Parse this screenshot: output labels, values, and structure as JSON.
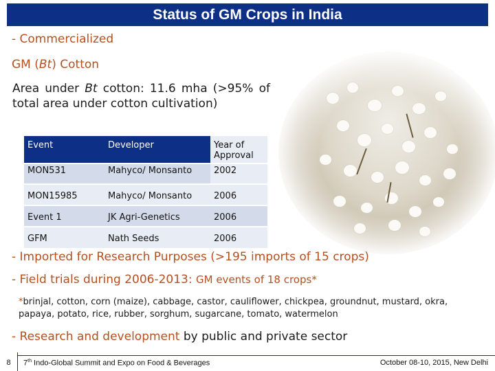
{
  "title": "Status of GM Crops in India",
  "sections": {
    "commercialized": "- Commercialized",
    "crop_heading_prefix": "GM (",
    "crop_heading_italic": "Bt",
    "crop_heading_suffix": ") Cotton",
    "area_prefix": "Area under ",
    "area_italic": "Bt",
    "area_suffix": " cotton: 11.6 mha (>95% of total area under cotton cultivation)"
  },
  "table": {
    "headers": [
      "Event",
      "Developer",
      "Year of Approval"
    ],
    "rows": [
      [
        "MON531",
        "Mahyco/ Monsanto",
        "2002"
      ],
      [
        "MON15985",
        "Mahyco/ Monsanto",
        "2006"
      ],
      [
        "Event 1",
        "JK Agri-Genetics",
        "2006"
      ],
      [
        "GFM",
        "Nath Seeds",
        "2006"
      ]
    ]
  },
  "imported": {
    "prefix": "- Imported for Research Purposes ",
    "highlight": "(>195 imports of 15 crops)"
  },
  "field_trials": {
    "prefix": "- Field trials during 2006-2013: ",
    "highlight": "GM events of 18 crops*"
  },
  "note": {
    "star": "*",
    "text": "brinjal, cotton, corn (maize), cabbage, castor, cauliflower, chickpea, groundnut, mustard, okra, papaya, potato, rice, rubber, sorghum, sugarcane, tomato, watermelon"
  },
  "research": {
    "prefix": "- Research and development ",
    "dark": "by public and private sector"
  },
  "footer": {
    "page_number": "8",
    "event_num": "7",
    "event_sup": "th",
    "event_rest": " Indo-Global Summit and Expo on Food & Beverages",
    "date_place": "October 08-10, 2015, New Delhi"
  },
  "colors": {
    "title_bar": "#0d2f86",
    "accent_text": "#b54f1e",
    "table_col_dark": "#d3dbea",
    "table_col_light": "#e8ecf4"
  },
  "images": {
    "photo": "cotton-field-photo"
  }
}
